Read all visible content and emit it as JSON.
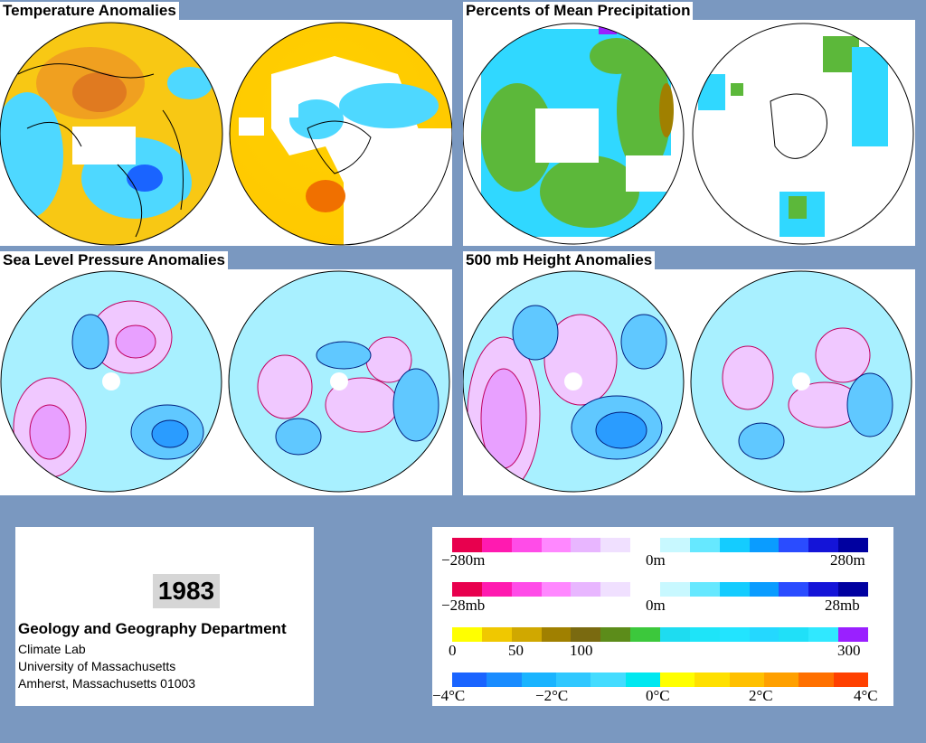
{
  "panels": [
    {
      "key": "temp",
      "title": "Temperature Anomalies"
    },
    {
      "key": "precip",
      "title": "Percents of Mean Precipitation"
    },
    {
      "key": "slp",
      "title": "Sea Level Pressure Anomalies"
    },
    {
      "key": "height",
      "title": "500 mb Height Anomalies"
    }
  ],
  "info": {
    "year": "1983",
    "department": "Geology and Geography Department",
    "lab": "Climate Lab",
    "university": "University of Massachusetts",
    "address": "Amherst, Massachusetts 01003"
  },
  "legends": [
    {
      "name": "height",
      "colors": [
        "#e8004e",
        "#ff1ab0",
        "#ff4ce8",
        "#ff88ff",
        "#e8b6ff",
        "#f0e0ff",
        "#ffffff",
        "#c8f8ff",
        "#66e8ff",
        "#14ccff",
        "#0a9cff",
        "#2a4cff",
        "#1414d8",
        "#0000a0"
      ],
      "labels": [
        "−280m",
        "0m",
        "280m"
      ]
    },
    {
      "name": "pressure",
      "colors": [
        "#e8004e",
        "#ff1ab0",
        "#ff4ce8",
        "#ff88ff",
        "#e8b6ff",
        "#f0e0ff",
        "#ffffff",
        "#c8f8ff",
        "#66e8ff",
        "#14ccff",
        "#0a9cff",
        "#2a4cff",
        "#1414d8",
        "#0000a0"
      ],
      "labels": [
        "−28mb",
        "0m",
        "28mb"
      ]
    },
    {
      "name": "precipitation",
      "colors": [
        "#ffff00",
        "#f0c800",
        "#d0a800",
        "#a08000",
        "#7a6a10",
        "#5c8c1a",
        "#3cc83c",
        "#1edcf0",
        "#1ee4f8",
        "#22e4ff",
        "#24d8ff",
        "#20e0f8",
        "#30e8ff",
        "#9a20ff"
      ],
      "labels": [
        "0",
        "50",
        "100",
        "300"
      ]
    },
    {
      "name": "temperature",
      "colors": [
        "#1a64ff",
        "#1a8cff",
        "#1ab4ff",
        "#30c8ff",
        "#44dcff",
        "#00e8f0",
        "#ffff00",
        "#ffe000",
        "#ffc000",
        "#ffa000",
        "#ff7000",
        "#ff4000"
      ],
      "labels": [
        "−4°C",
        "−2°C",
        "0°C",
        "2°C",
        "4°C"
      ]
    }
  ]
}
